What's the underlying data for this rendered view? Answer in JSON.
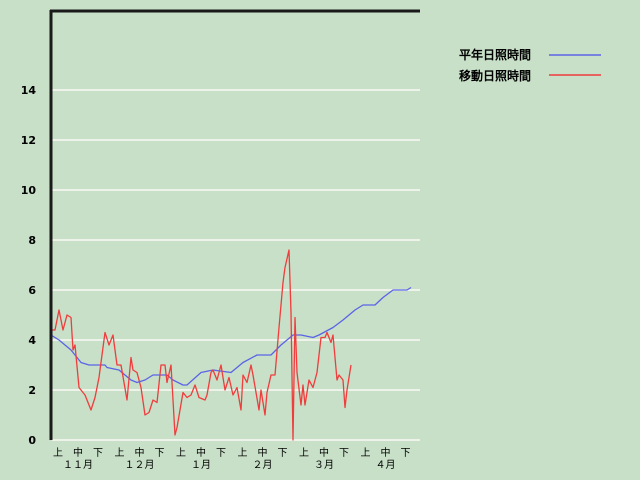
{
  "chart_data": {
    "type": "line",
    "title": "",
    "xlabel": "",
    "ylabel": "",
    "ylim": [
      0,
      17.2
    ],
    "yticks": [
      "0",
      "2",
      "4",
      "6",
      "8",
      "10",
      "12",
      "14"
    ],
    "grid": true,
    "legend_position": "top-right",
    "x_period_labels": [
      "上",
      "中",
      "下"
    ],
    "x_month_labels": [
      "１１月",
      "１２月",
      "１月",
      "２月",
      "３月",
      "４月"
    ],
    "x_range": [
      "11-01",
      "04-30"
    ],
    "series": [
      {
        "name": "平年日照時間",
        "color": "#5a64e6",
        "points": [
          [
            "11-01",
            4.2
          ],
          [
            "11-05",
            4.0
          ],
          [
            "11-11",
            3.6
          ],
          [
            "11-16",
            3.1
          ],
          [
            "11-20",
            3.0
          ],
          [
            "11-28",
            3.0
          ],
          [
            "11-29",
            2.9
          ],
          [
            "12-05",
            2.8
          ],
          [
            "12-11",
            2.4
          ],
          [
            "12-14",
            2.3
          ],
          [
            "12-18",
            2.4
          ],
          [
            "12-22",
            2.6
          ],
          [
            "12-29",
            2.6
          ],
          [
            "01-01",
            2.4
          ],
          [
            "01-06",
            2.2
          ],
          [
            "01-08",
            2.2
          ],
          [
            "01-15",
            2.7
          ],
          [
            "01-21",
            2.8
          ],
          [
            "01-30",
            2.7
          ],
          [
            "02-05",
            3.1
          ],
          [
            "02-12",
            3.4
          ],
          [
            "02-19",
            3.4
          ],
          [
            "02-24",
            3.8
          ],
          [
            "03-02",
            4.2
          ],
          [
            "03-06",
            4.2
          ],
          [
            "03-12",
            4.1
          ],
          [
            "03-15",
            4.2
          ],
          [
            "03-22",
            4.5
          ],
          [
            "03-27",
            4.8
          ],
          [
            "04-02",
            5.2
          ],
          [
            "04-06",
            5.4
          ],
          [
            "04-12",
            5.4
          ],
          [
            "04-16",
            5.7
          ],
          [
            "04-21",
            6.0
          ],
          [
            "04-28",
            6.0
          ],
          [
            "04-30",
            6.1
          ]
        ]
      },
      {
        "name": "移動日照時間",
        "color": "#f03c3c",
        "points": [
          [
            "11-01",
            0
          ],
          [
            "11-01",
            4.4
          ],
          [
            "11-03",
            4.4
          ],
          [
            "11-05",
            5.2
          ],
          [
            "11-07",
            4.4
          ],
          [
            "11-09",
            5.0
          ],
          [
            "11-11",
            4.9
          ],
          [
            "11-12",
            3.6
          ],
          [
            "11-13",
            3.8
          ],
          [
            "11-15",
            2.1
          ],
          [
            "11-16",
            2.0
          ],
          [
            "11-18",
            1.8
          ],
          [
            "11-21",
            1.2
          ],
          [
            "11-23",
            1.7
          ],
          [
            "11-25",
            2.5
          ],
          [
            "11-28",
            4.3
          ],
          [
            "11-30",
            3.8
          ],
          [
            "12-02",
            4.2
          ],
          [
            "12-04",
            3.0
          ],
          [
            "12-06",
            3.0
          ],
          [
            "12-09",
            1.6
          ],
          [
            "12-11",
            3.3
          ],
          [
            "12-12",
            2.8
          ],
          [
            "12-14",
            2.7
          ],
          [
            "12-16",
            2.1
          ],
          [
            "12-18",
            1.0
          ],
          [
            "12-20",
            1.1
          ],
          [
            "12-22",
            1.6
          ],
          [
            "12-24",
            1.5
          ],
          [
            "12-26",
            3.0
          ],
          [
            "12-28",
            3.0
          ],
          [
            "12-29",
            2.3
          ],
          [
            "12-31",
            3.0
          ],
          [
            "01-02",
            0.2
          ],
          [
            "01-03",
            0.5
          ],
          [
            "01-06",
            1.9
          ],
          [
            "01-08",
            1.7
          ],
          [
            "01-10",
            1.8
          ],
          [
            "01-12",
            2.2
          ],
          [
            "01-14",
            1.7
          ],
          [
            "01-17",
            1.6
          ],
          [
            "01-18",
            1.8
          ],
          [
            "01-20",
            2.7
          ],
          [
            "01-21",
            2.8
          ],
          [
            "01-23",
            2.4
          ],
          [
            "01-25",
            3.0
          ],
          [
            "01-27",
            2.0
          ],
          [
            "01-29",
            2.5
          ],
          [
            "01-31",
            1.8
          ],
          [
            "02-02",
            2.1
          ],
          [
            "02-04",
            1.2
          ],
          [
            "02-05",
            2.6
          ],
          [
            "02-07",
            2.3
          ],
          [
            "02-09",
            3.0
          ],
          [
            "02-10",
            2.6
          ],
          [
            "02-13",
            1.2
          ],
          [
            "02-14",
            2.0
          ],
          [
            "02-16",
            1.0
          ],
          [
            "02-17",
            1.9
          ],
          [
            "02-19",
            2.6
          ],
          [
            "02-21",
            2.6
          ],
          [
            "02-23",
            4.5
          ],
          [
            "02-25",
            6.3
          ],
          [
            "02-26",
            6.9
          ],
          [
            "02-28",
            7.6
          ],
          [
            "03-01",
            5.1
          ],
          [
            "03-02",
            0
          ],
          [
            "03-03",
            4.9
          ],
          [
            "03-04",
            2.7
          ],
          [
            "03-06",
            1.4
          ],
          [
            "03-07",
            2.2
          ],
          [
            "03-08",
            1.4
          ],
          [
            "03-10",
            2.4
          ],
          [
            "03-12",
            2.1
          ],
          [
            "03-14",
            2.7
          ],
          [
            "03-16",
            4.1
          ],
          [
            "03-18",
            4.1
          ],
          [
            "03-19",
            4.3
          ],
          [
            "03-21",
            3.9
          ],
          [
            "03-22",
            4.2
          ],
          [
            "03-24",
            2.4
          ],
          [
            "03-25",
            2.6
          ],
          [
            "03-27",
            2.4
          ],
          [
            "03-28",
            1.3
          ],
          [
            "03-29",
            2.0
          ],
          [
            "03-31",
            3.0
          ]
        ]
      }
    ]
  }
}
